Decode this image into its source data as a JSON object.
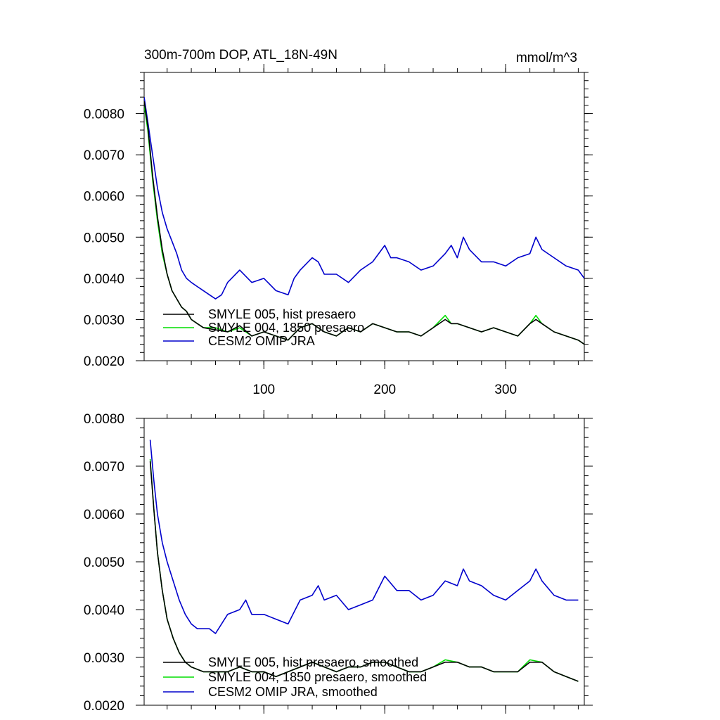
{
  "chart_data": [
    {
      "type": "line",
      "title": "300m-700m DOP, ATL_18N-49N",
      "units": "mmol/m^3",
      "xlabel": "",
      "ylabel": "",
      "xlim": [
        1,
        365
      ],
      "ylim": [
        0.002,
        0.009
      ],
      "xticks": [
        100,
        200,
        300
      ],
      "xtick_labels": [
        "100",
        "200",
        "300"
      ],
      "yticks": [
        0.002,
        0.003,
        0.004,
        0.005,
        0.006,
        0.007,
        0.008
      ],
      "ytick_labels": [
        "0.0020",
        "0.0030",
        "0.0040",
        "0.0050",
        "0.0060",
        "0.0070",
        "0.0080"
      ],
      "grid": false,
      "legend_position": "bottom-left",
      "series": [
        {
          "name": "SMYLE 005, hist presaero",
          "color": "#000000",
          "x": [
            1,
            4,
            8,
            12,
            16,
            20,
            24,
            28,
            32,
            36,
            40,
            45,
            50,
            60,
            70,
            80,
            90,
            100,
            110,
            120,
            130,
            140,
            150,
            160,
            170,
            180,
            190,
            200,
            210,
            220,
            230,
            240,
            250,
            255,
            260,
            270,
            280,
            290,
            300,
            310,
            320,
            325,
            330,
            340,
            350,
            360,
            365
          ],
          "y": [
            0.0083,
            0.0077,
            0.0065,
            0.0055,
            0.0047,
            0.0041,
            0.0037,
            0.0035,
            0.0033,
            0.0032,
            0.003,
            0.0029,
            0.0028,
            0.00275,
            0.0027,
            0.00285,
            0.0026,
            0.0027,
            0.0026,
            0.0025,
            0.0028,
            0.0029,
            0.0027,
            0.0026,
            0.0028,
            0.0027,
            0.0029,
            0.0028,
            0.0027,
            0.0027,
            0.0026,
            0.0028,
            0.003,
            0.0029,
            0.0029,
            0.0028,
            0.0027,
            0.0028,
            0.0027,
            0.0026,
            0.0029,
            0.003,
            0.0029,
            0.0027,
            0.0026,
            0.0025,
            0.0024
          ]
        },
        {
          "name": "SMYLE 004, 1850 presaero",
          "color": "#00dd00",
          "x": [
            1,
            4,
            8,
            12,
            16,
            20,
            24,
            28,
            32,
            36,
            40,
            45,
            50,
            60,
            70,
            80,
            90,
            100,
            110,
            120,
            130,
            140,
            150,
            160,
            170,
            180,
            190,
            200,
            210,
            220,
            230,
            240,
            250,
            255,
            260,
            270,
            280,
            290,
            300,
            310,
            320,
            325,
            330,
            340,
            350,
            360,
            365
          ],
          "y": [
            0.0082,
            0.0076,
            0.0064,
            0.0054,
            0.0046,
            0.0041,
            0.0037,
            0.0035,
            0.0033,
            0.0032,
            0.003,
            0.0029,
            0.0028,
            0.0028,
            0.0027,
            0.0028,
            0.0026,
            0.0027,
            0.0026,
            0.0025,
            0.0028,
            0.0029,
            0.0027,
            0.0026,
            0.0028,
            0.0027,
            0.0029,
            0.0028,
            0.0027,
            0.0027,
            0.0026,
            0.0028,
            0.0031,
            0.0029,
            0.0029,
            0.0028,
            0.0027,
            0.0028,
            0.0027,
            0.0026,
            0.0029,
            0.0031,
            0.0029,
            0.0027,
            0.0026,
            0.0025,
            0.0024
          ]
        },
        {
          "name": "CESM2 OMIP JRA",
          "color": "#0000cc",
          "x": [
            1,
            4,
            8,
            12,
            16,
            20,
            24,
            28,
            32,
            36,
            40,
            45,
            50,
            55,
            60,
            65,
            70,
            80,
            90,
            100,
            110,
            120,
            125,
            130,
            140,
            145,
            150,
            160,
            170,
            180,
            190,
            200,
            205,
            210,
            220,
            230,
            240,
            250,
            255,
            260,
            265,
            270,
            280,
            290,
            300,
            310,
            320,
            325,
            330,
            340,
            350,
            360,
            365
          ],
          "y": [
            0.0084,
            0.0078,
            0.007,
            0.0062,
            0.0056,
            0.0052,
            0.0049,
            0.0046,
            0.0042,
            0.004,
            0.0039,
            0.0038,
            0.0037,
            0.0036,
            0.0035,
            0.0036,
            0.0039,
            0.0042,
            0.0039,
            0.004,
            0.0037,
            0.0036,
            0.004,
            0.0042,
            0.0045,
            0.0044,
            0.0041,
            0.0041,
            0.0039,
            0.0042,
            0.0044,
            0.0048,
            0.0045,
            0.0045,
            0.0044,
            0.0042,
            0.0043,
            0.0046,
            0.0048,
            0.0045,
            0.005,
            0.0047,
            0.0044,
            0.0044,
            0.0043,
            0.0045,
            0.0046,
            0.005,
            0.0047,
            0.0045,
            0.0043,
            0.0042,
            0.004
          ]
        }
      ]
    },
    {
      "type": "line",
      "title": "",
      "xlabel": "",
      "ylabel": "",
      "xlim": [
        1,
        365
      ],
      "ylim": [
        0.002,
        0.008
      ],
      "xticks": [
        100,
        200,
        300
      ],
      "xtick_labels": [],
      "yticks": [
        0.002,
        0.003,
        0.004,
        0.005,
        0.006,
        0.007,
        0.008
      ],
      "ytick_labels": [
        "0.0020",
        "0.0030",
        "0.0040",
        "0.0050",
        "0.0060",
        "0.0070",
        "0.0080"
      ],
      "grid": false,
      "legend_position": "bottom-left",
      "series": [
        {
          "name": "SMYLE 005, hist presaero, smoothed",
          "color": "#000000",
          "x": [
            6,
            9,
            12,
            16,
            20,
            25,
            30,
            35,
            40,
            50,
            60,
            70,
            80,
            90,
            100,
            110,
            120,
            130,
            140,
            150,
            160,
            170,
            180,
            190,
            200,
            210,
            220,
            230,
            240,
            250,
            260,
            270,
            280,
            290,
            300,
            310,
            320,
            330,
            340,
            350,
            360
          ],
          "y": [
            0.0071,
            0.0061,
            0.0052,
            0.0044,
            0.0038,
            0.0034,
            0.0031,
            0.0029,
            0.0028,
            0.0027,
            0.0027,
            0.0027,
            0.0028,
            0.0027,
            0.0027,
            0.0026,
            0.0027,
            0.0028,
            0.0029,
            0.0028,
            0.0027,
            0.0028,
            0.0028,
            0.0029,
            0.0029,
            0.0028,
            0.0027,
            0.0027,
            0.0028,
            0.0029,
            0.0029,
            0.0028,
            0.0028,
            0.0027,
            0.0027,
            0.0027,
            0.0029,
            0.0029,
            0.0027,
            0.0026,
            0.0025
          ]
        },
        {
          "name": "SMYLE 004, 1850 presaero, smoothed",
          "color": "#00dd00",
          "x": [
            6,
            9,
            12,
            16,
            20,
            25,
            30,
            35,
            40,
            50,
            60,
            70,
            80,
            90,
            100,
            110,
            120,
            130,
            140,
            150,
            160,
            170,
            180,
            190,
            200,
            210,
            220,
            230,
            240,
            250,
            260,
            270,
            280,
            290,
            300,
            310,
            320,
            330,
            340,
            350,
            360
          ],
          "y": [
            0.00715,
            0.0061,
            0.0052,
            0.0044,
            0.0038,
            0.0034,
            0.0031,
            0.0029,
            0.0028,
            0.0027,
            0.0027,
            0.0027,
            0.0028,
            0.0027,
            0.0027,
            0.0026,
            0.0027,
            0.0028,
            0.0029,
            0.0028,
            0.0027,
            0.0028,
            0.0028,
            0.0029,
            0.0029,
            0.0028,
            0.0027,
            0.0027,
            0.0028,
            0.00295,
            0.0029,
            0.0028,
            0.0028,
            0.0027,
            0.0027,
            0.0027,
            0.00295,
            0.0029,
            0.0027,
            0.0026,
            0.0025
          ]
        },
        {
          "name": "CESM2 OMIP JRA, smoothed",
          "color": "#0000cc",
          "x": [
            6,
            9,
            12,
            16,
            20,
            25,
            30,
            35,
            40,
            45,
            50,
            55,
            60,
            70,
            80,
            85,
            90,
            100,
            110,
            120,
            130,
            140,
            145,
            150,
            160,
            170,
            180,
            190,
            200,
            210,
            220,
            230,
            240,
            250,
            260,
            265,
            270,
            280,
            290,
            300,
            310,
            320,
            325,
            330,
            340,
            350,
            360
          ],
          "y": [
            0.00755,
            0.0067,
            0.006,
            0.0054,
            0.005,
            0.0046,
            0.0042,
            0.0039,
            0.0037,
            0.0036,
            0.0036,
            0.0036,
            0.0035,
            0.0039,
            0.004,
            0.0042,
            0.0039,
            0.0039,
            0.0038,
            0.0037,
            0.0042,
            0.0043,
            0.0045,
            0.0042,
            0.0043,
            0.004,
            0.0041,
            0.0042,
            0.0047,
            0.0044,
            0.0044,
            0.0042,
            0.0043,
            0.0046,
            0.0045,
            0.00485,
            0.0046,
            0.0045,
            0.0043,
            0.0042,
            0.0044,
            0.0046,
            0.00485,
            0.0046,
            0.0043,
            0.0042,
            0.0042
          ]
        }
      ]
    }
  ]
}
